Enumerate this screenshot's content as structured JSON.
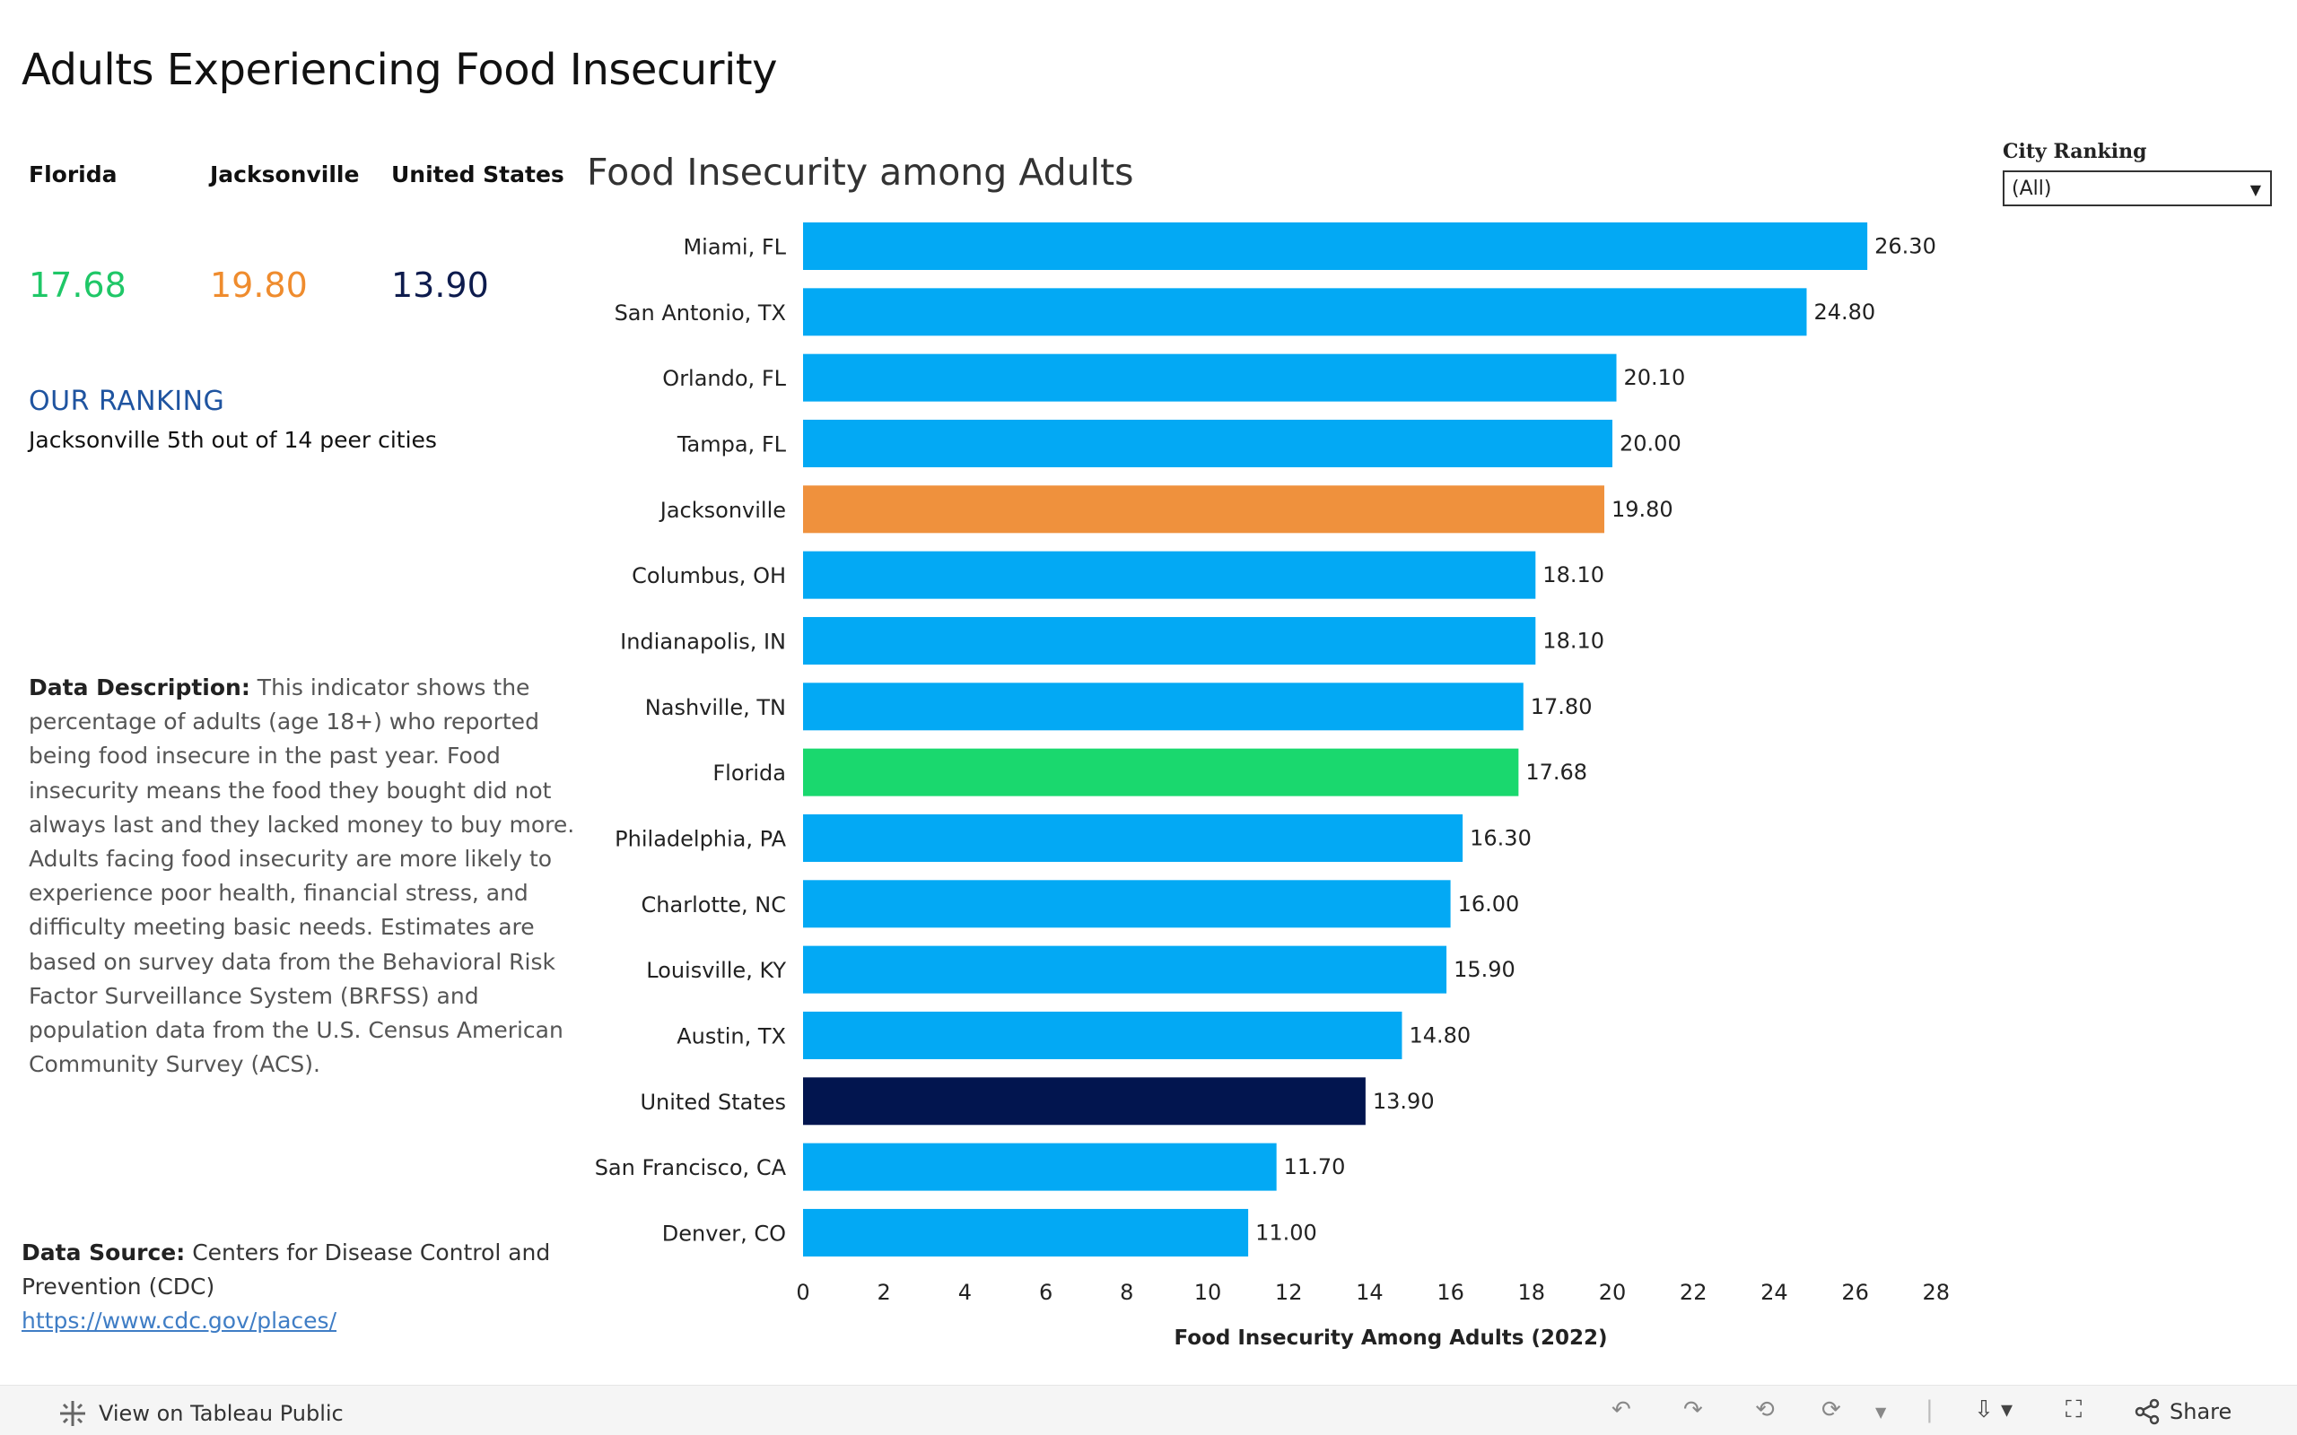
{
  "title": "Adults Experiencing Food Insecurity",
  "kpis": [
    {
      "label": "Florida",
      "value": "17.68",
      "color": "#1fc767"
    },
    {
      "label": "Jacksonville",
      "value": "19.80",
      "color": "#ef8c2e"
    },
    {
      "label": "United States",
      "value": "13.90",
      "color": "#0d1b4d"
    }
  ],
  "ranking": {
    "heading": "OUR RANKING",
    "text": "Jacksonville 5th out of 14 peer cities"
  },
  "description": {
    "label": "Data Description:",
    "text": "This indicator shows the percentage of adults (age 18+) who reported being food insecure in the past year. Food insecurity means the food they bought did not always last and they lacked money to buy more. Adults facing food insecurity are more likely to experience poor health, financial stress, and difficulty meeting basic needs. Estimates are based on survey data from the Behavioral Risk Factor Surveillance System (BRFSS) and population data from the U.S. Census American Community Survey (ACS)."
  },
  "source": {
    "label": "Data Source:",
    "text": "Centers for Disease Control and Prevention (CDC)",
    "link": "https://www.cdc.gov/places/"
  },
  "filter": {
    "label": "City  Ranking",
    "selected": "(All)"
  },
  "footer": {
    "view_label": "View on Tableau Public",
    "share_label": "Share"
  },
  "colors": {
    "default_bar": "#03a9f4",
    "jacksonville": "#ef913d",
    "florida": "#1ad86e",
    "united_states": "#02154f"
  },
  "chart_data": {
    "type": "bar",
    "orientation": "horizontal",
    "title": "Food Insecurity among Adults",
    "xlabel": "Food Insecurity Among Adults (2022)",
    "ylabel": "",
    "xlim": [
      0,
      28
    ],
    "xticks": [
      0,
      2,
      4,
      6,
      8,
      10,
      12,
      14,
      16,
      18,
      20,
      22,
      24,
      26,
      28
    ],
    "grid": false,
    "categories": [
      "Miami, FL",
      "San Antonio, TX",
      "Orlando, FL",
      "Tampa, FL",
      "Jacksonville",
      "Columbus, OH",
      "Indianapolis, IN",
      "Nashville, TN",
      "Florida",
      "Philadelphia, PA",
      "Charlotte, NC",
      "Louisville, KY",
      "Austin, TX",
      "United States",
      "San Francisco, CA",
      "Denver, CO"
    ],
    "values": [
      26.3,
      24.8,
      20.1,
      20.0,
      19.8,
      18.1,
      18.1,
      17.8,
      17.68,
      16.3,
      16.0,
      15.9,
      14.8,
      13.9,
      11.7,
      11.0
    ],
    "value_labels": [
      "26.30",
      "24.80",
      "20.10",
      "20.00",
      "19.80",
      "18.10",
      "18.10",
      "17.80",
      "17.68",
      "16.30",
      "16.00",
      "15.90",
      "14.80",
      "13.90",
      "11.70",
      "11.00"
    ],
    "highlight": {
      "Jacksonville": "jacksonville",
      "Florida": "florida",
      "United States": "united_states"
    }
  }
}
